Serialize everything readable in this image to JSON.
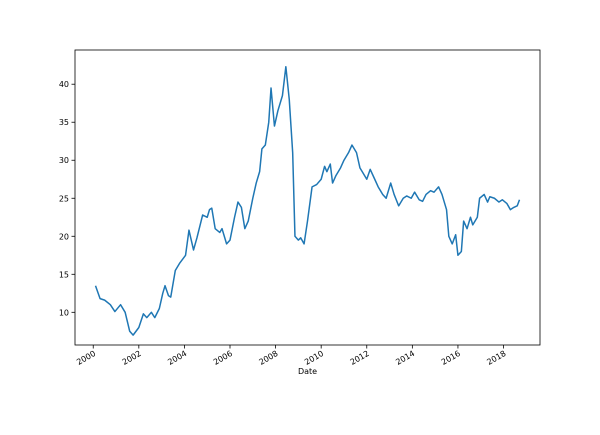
{
  "chart_data": {
    "type": "line",
    "x_label": "Date",
    "series": [
      {
        "color": "#1f77b4",
        "x": [
          2000.1,
          2000.3,
          2000.5,
          2000.75,
          2000.95,
          2001.2,
          2001.4,
          2001.6,
          2001.75,
          2002.0,
          2002.2,
          2002.35,
          2002.55,
          2002.7,
          2002.9,
          2003.05,
          2003.15,
          2003.3,
          2003.4,
          2003.6,
          2003.8,
          2004.05,
          2004.2,
          2004.4,
          2004.55,
          2004.8,
          2005.0,
          2005.1,
          2005.2,
          2005.35,
          2005.55,
          2005.65,
          2005.85,
          2006.0,
          2006.2,
          2006.35,
          2006.5,
          2006.65,
          2006.8,
          2007.0,
          2007.15,
          2007.3,
          2007.4,
          2007.55,
          2007.7,
          2007.8,
          2007.95,
          2008.1,
          2008.3,
          2008.45,
          2008.6,
          2008.75,
          2008.85,
          2009.0,
          2009.1,
          2009.25,
          2009.4,
          2009.6,
          2009.8,
          2010.0,
          2010.15,
          2010.25,
          2010.4,
          2010.5,
          2010.65,
          2010.85,
          2011.0,
          2011.2,
          2011.35,
          2011.55,
          2011.7,
          2011.8,
          2012.0,
          2012.15,
          2012.35,
          2012.5,
          2012.7,
          2012.85,
          2013.05,
          2013.2,
          2013.4,
          2013.6,
          2013.75,
          2013.95,
          2014.1,
          2014.3,
          2014.45,
          2014.6,
          2014.8,
          2014.95,
          2015.15,
          2015.3,
          2015.5,
          2015.6,
          2015.75,
          2015.9,
          2016.0,
          2016.15,
          2016.25,
          2016.4,
          2016.55,
          2016.65,
          2016.85,
          2016.95,
          2017.15,
          2017.3,
          2017.4,
          2017.6,
          2017.8,
          2017.95,
          2018.15,
          2018.3,
          2018.45,
          2018.6,
          2018.7
        ],
        "values": [
          13.5,
          11.8,
          11.6,
          11.0,
          10.1,
          11.0,
          10.0,
          7.5,
          7.0,
          8.0,
          9.8,
          9.3,
          10.0,
          9.3,
          10.5,
          12.5,
          13.5,
          12.2,
          12.0,
          15.5,
          16.5,
          17.5,
          20.8,
          18.2,
          19.8,
          22.8,
          22.5,
          23.5,
          23.7,
          21.0,
          20.5,
          21.0,
          19.0,
          19.5,
          22.5,
          24.5,
          23.8,
          21.0,
          22.0,
          25.0,
          27.0,
          28.5,
          31.5,
          32.0,
          35.0,
          39.5,
          34.5,
          36.5,
          38.5,
          42.3,
          38.0,
          31.0,
          20.0,
          19.5,
          19.8,
          19.0,
          22.0,
          26.5,
          26.8,
          27.5,
          29.2,
          28.5,
          29.5,
          27.0,
          28.0,
          29.0,
          30.0,
          31.0,
          32.0,
          31.0,
          29.0,
          28.5,
          27.5,
          28.8,
          27.5,
          26.5,
          25.5,
          25.0,
          27.0,
          25.5,
          24.0,
          25.0,
          25.3,
          25.0,
          25.8,
          24.8,
          24.6,
          25.5,
          26.0,
          25.8,
          26.5,
          25.5,
          23.5,
          20.0,
          19.0,
          20.2,
          17.5,
          18.0,
          22.0,
          21.0,
          22.5,
          21.5,
          22.5,
          25.0,
          25.5,
          24.5,
          25.2,
          25.0,
          24.5,
          24.8,
          24.3,
          23.5,
          23.8,
          24.0,
          24.8
        ]
      }
    ],
    "xlim": [
      1999.2,
      2019.6
    ],
    "xticks": [
      2000,
      2002,
      2004,
      2006,
      2008,
      2010,
      2012,
      2014,
      2016,
      2018
    ],
    "ylim": [
      5.7,
      44.5
    ],
    "yticks": [
      10,
      15,
      20,
      25,
      30,
      35,
      40
    ],
    "grid": false
  }
}
